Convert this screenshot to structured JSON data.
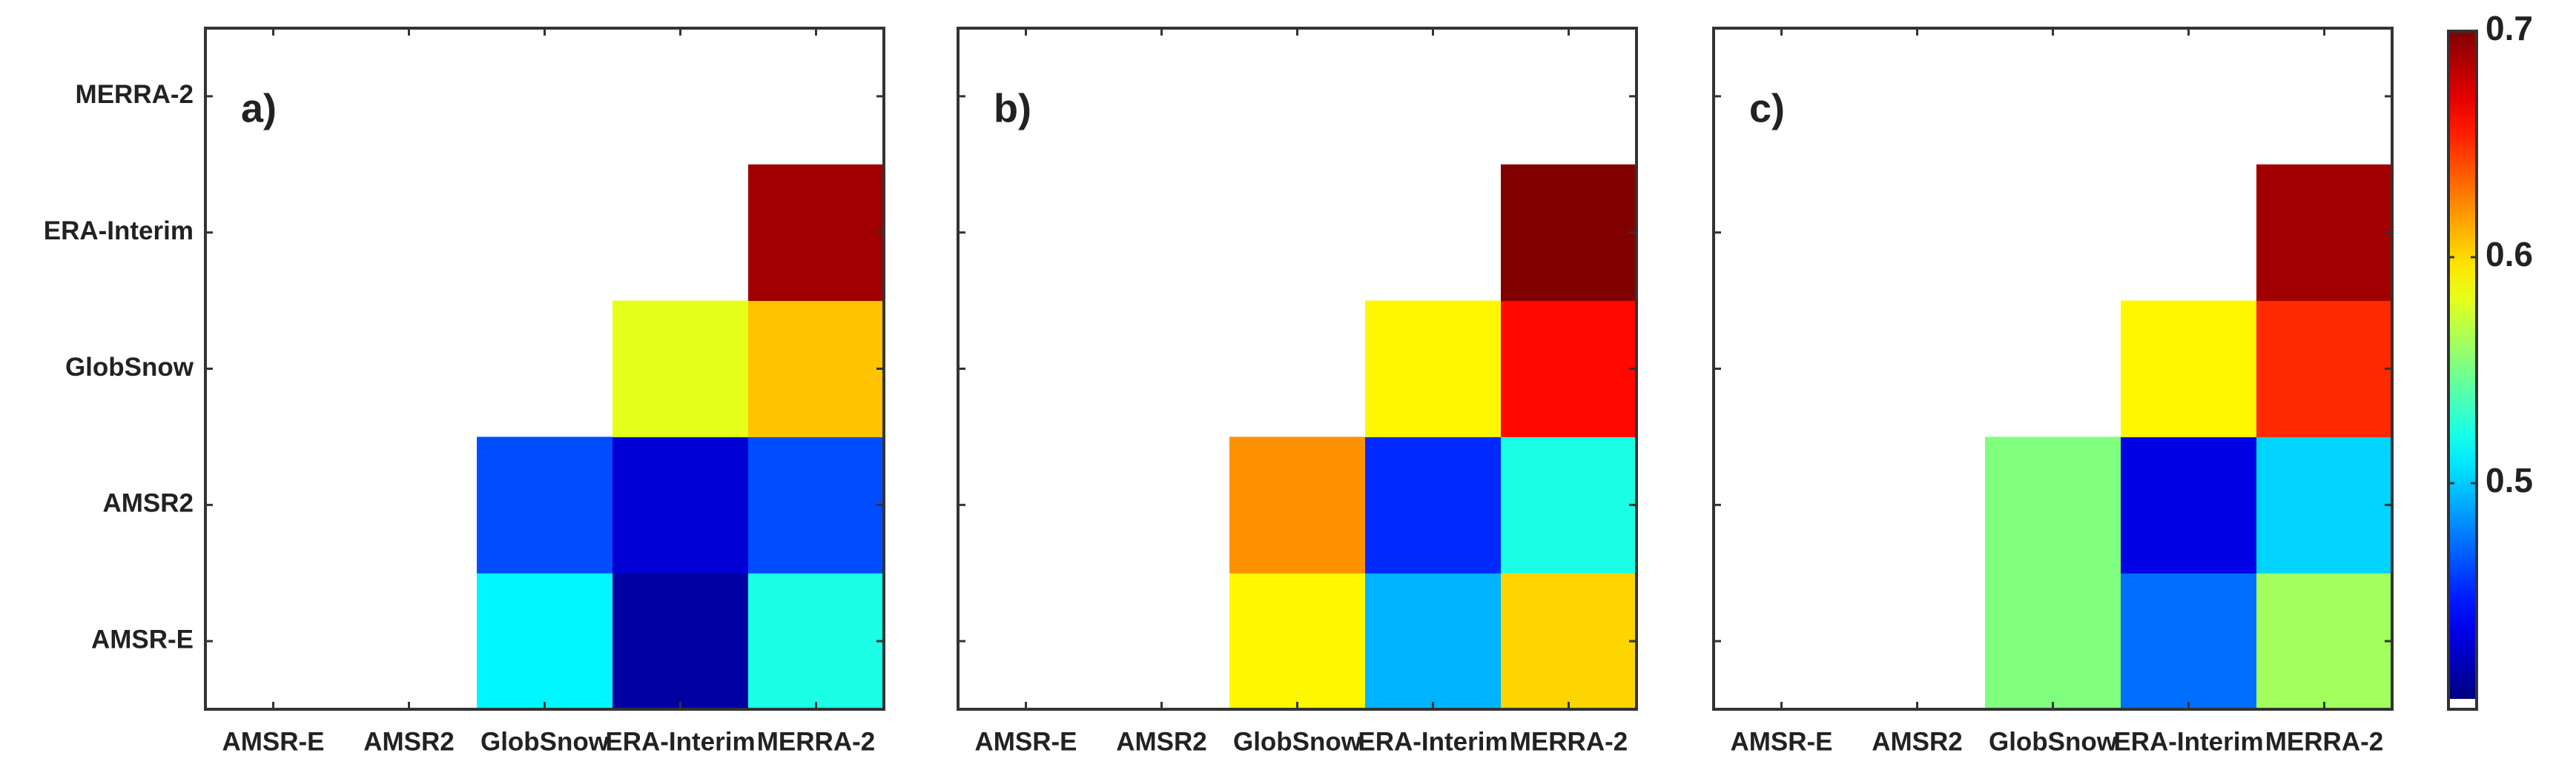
{
  "chart_data": [
    {
      "type": "heatmap",
      "title": "a)",
      "x": [
        "AMSR-E",
        "AMSR2",
        "GlobSnow",
        "ERA-Interim",
        "MERRA-2"
      ],
      "y": [
        "AMSR-E",
        "AMSR2",
        "GlobSnow",
        "ERA-Interim",
        "MERRA-2"
      ],
      "z": [
        [
          null,
          null,
          0.51,
          0.41,
          0.52
        ],
        [
          null,
          null,
          0.46,
          0.425,
          0.46
        ],
        [
          null,
          null,
          null,
          0.58,
          0.605
        ],
        [
          null,
          null,
          null,
          null,
          0.69
        ],
        [
          null,
          null,
          null,
          null,
          null
        ]
      ],
      "zlim": [
        0.4,
        0.7
      ],
      "colormap": "jet"
    },
    {
      "type": "heatmap",
      "title": "b)",
      "x": [
        "AMSR-E",
        "AMSR2",
        "GlobSnow",
        "ERA-Interim",
        "MERRA-2"
      ],
      "z": [
        [
          null,
          null,
          0.59,
          0.49,
          0.6
        ],
        [
          null,
          null,
          0.62,
          0.45,
          0.52
        ],
        [
          null,
          null,
          null,
          0.59,
          0.66
        ],
        [
          null,
          null,
          null,
          null,
          0.7
        ],
        [
          null,
          null,
          null,
          null,
          null
        ]
      ],
      "zlim": [
        0.4,
        0.7
      ],
      "colormap": "jet"
    },
    {
      "type": "heatmap",
      "title": "c)",
      "x": [
        "AMSR-E",
        "AMSR2",
        "GlobSnow",
        "ERA-Interim",
        "MERRA-2"
      ],
      "z": [
        [
          null,
          null,
          0.55,
          0.47,
          0.56
        ],
        [
          null,
          null,
          0.55,
          0.43,
          0.5
        ],
        [
          null,
          null,
          null,
          0.59,
          0.65
        ],
        [
          null,
          null,
          null,
          null,
          0.69
        ],
        [
          null,
          null,
          null,
          null,
          null
        ]
      ],
      "zlim": [
        0.4,
        0.7
      ],
      "colormap": "jet",
      "colorbar": {
        "zticks": [
          0.5,
          0.6,
          0.7
        ]
      }
    }
  ]
}
